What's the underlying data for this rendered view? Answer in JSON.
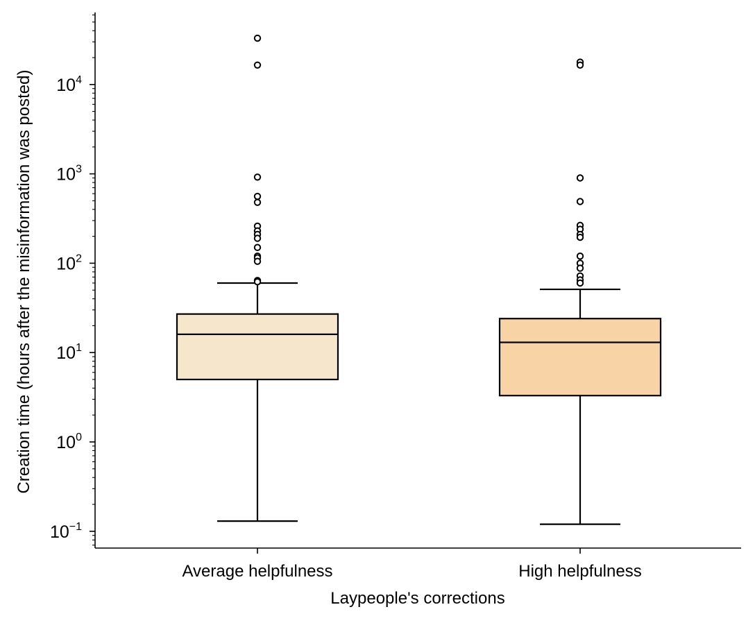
{
  "chart_data": {
    "type": "box",
    "xlabel": "Laypeople's corrections",
    "ylabel": "Creation time (hours after the misinformation was posted)",
    "yscale": "log",
    "ylim": [
      0.065,
      60000
    ],
    "yticks": [
      {
        "base": "10",
        "exp": "−1",
        "value": 0.1
      },
      {
        "base": "10",
        "exp": "0",
        "value": 1
      },
      {
        "base": "10",
        "exp": "1",
        "value": 10
      },
      {
        "base": "10",
        "exp": "2",
        "value": 100
      },
      {
        "base": "10",
        "exp": "3",
        "value": 1000
      },
      {
        "base": "10",
        "exp": "4",
        "value": 10000
      }
    ],
    "groups": [
      {
        "label": "Average helpfulness",
        "color": "#f5e6cc",
        "whisker_low": 0.13,
        "q1": 5.0,
        "median": 16,
        "q3": 27,
        "whisker_high": 60,
        "outliers": [
          33000,
          16500,
          920,
          560,
          480,
          260,
          230,
          210,
          190,
          150,
          120,
          115,
          105,
          64,
          62
        ]
      },
      {
        "label": "High helpfulness",
        "color": "#f7d3a5",
        "whisker_low": 0.12,
        "q1": 3.3,
        "median": 13,
        "q3": 24,
        "whisker_high": 51,
        "outliers": [
          17800,
          16500,
          900,
          490,
          265,
          240,
          210,
          195,
          120,
          100,
          88,
          72,
          65,
          60
        ]
      }
    ]
  }
}
